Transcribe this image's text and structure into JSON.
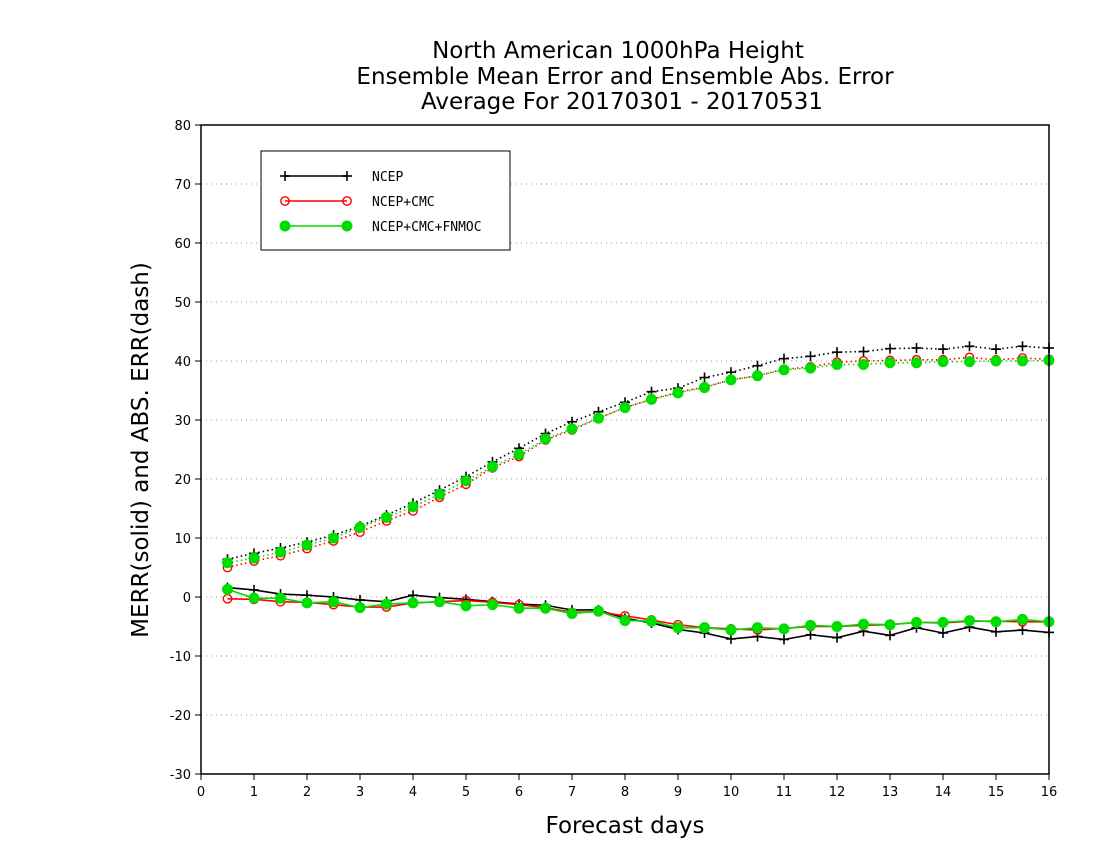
{
  "chart_data": {
    "type": "line",
    "title": [
      "North American 1000hPa Height",
      "Ensemble Mean Error and Ensemble Abs. Error",
      "Average For 20170301 - 20170531"
    ],
    "xlabel": "Forecast days",
    "ylabel": "MERR(solid) and ABS. ERR(dash)",
    "xlim": [
      0,
      16
    ],
    "ylim": [
      -30,
      80
    ],
    "xticks": [
      "0",
      "1",
      "2",
      "3",
      "4",
      "5",
      "6",
      "7",
      "8",
      "9",
      "10",
      "11",
      "12",
      "13",
      "14",
      "15",
      "16"
    ],
    "yticks": [
      "-30",
      "-20",
      "-10",
      "0",
      "10",
      "20",
      "30",
      "40",
      "50",
      "60",
      "70",
      "80"
    ],
    "grid": "horizontal dotted",
    "legend_position": "top-left",
    "x": [
      0.5,
      1,
      1.5,
      2,
      2.5,
      3,
      3.5,
      4,
      4.5,
      5,
      5.5,
      6,
      6.5,
      7,
      7.5,
      8,
      8.5,
      9,
      9.5,
      10,
      10.5,
      11,
      11.5,
      12,
      12.5,
      13,
      13.5,
      14,
      14.5,
      15,
      15.5,
      16
    ],
    "series": [
      {
        "name": "NCEP",
        "color": "#000000",
        "marker": "plus",
        "merr": [
          1.6,
          1.2,
          0.5,
          0.3,
          0.0,
          -0.5,
          -0.8,
          0.3,
          -0.1,
          -0.4,
          -0.8,
          -1.2,
          -1.4,
          -2.2,
          -2.2,
          -3.6,
          -4.4,
          -5.5,
          -6.1,
          -7.1,
          -6.7,
          -7.2,
          -6.4,
          -6.9,
          -5.8,
          -6.5,
          -5.2,
          -6.1,
          -5.1,
          -5.9,
          -5.6,
          -6.0
        ],
        "abs_err": [
          6.4,
          7.4,
          8.3,
          9.3,
          10.5,
          12.0,
          13.9,
          15.9,
          18.1,
          20.4,
          22.9,
          25.2,
          27.7,
          29.7,
          31.4,
          33.0,
          34.8,
          35.4,
          37.2,
          38.1,
          39.2,
          40.4,
          40.8,
          41.5,
          41.6,
          42.1,
          42.2,
          42.0,
          42.5,
          42.0,
          42.5,
          42.2
        ]
      },
      {
        "name": "NCEP+CMC",
        "color": "#ff0000",
        "marker": "open-circle",
        "merr": [
          -0.3,
          -0.4,
          -0.8,
          -0.9,
          -1.3,
          -1.7,
          -1.7,
          -1.0,
          -0.8,
          -0.6,
          -0.9,
          -1.3,
          -1.8,
          -2.6,
          -2.5,
          -3.2,
          -3.9,
          -4.7,
          -5.2,
          -5.4,
          -5.6,
          -5.3,
          -5.0,
          -5.0,
          -4.8,
          -4.7,
          -4.3,
          -4.4,
          -4.1,
          -4.1,
          -4.2,
          -4.2
        ],
        "abs_err": [
          5.0,
          6.1,
          7.0,
          8.2,
          9.5,
          11.0,
          12.9,
          14.6,
          16.9,
          19.1,
          21.9,
          23.8,
          26.6,
          28.3,
          30.3,
          32.1,
          33.5,
          34.7,
          35.6,
          36.8,
          37.5,
          38.6,
          39.0,
          39.8,
          40.0,
          40.1,
          40.2,
          40.2,
          40.6,
          40.2,
          40.5,
          40.3
        ]
      },
      {
        "name": "NCEP+CMC+FNMOC",
        "color": "#00dd00",
        "marker": "filled-circle",
        "merr": [
          1.3,
          -0.2,
          -0.2,
          -1.0,
          -0.8,
          -1.8,
          -1.2,
          -1.0,
          -0.8,
          -1.5,
          -1.3,
          -1.9,
          -1.9,
          -2.8,
          -2.4,
          -4.0,
          -4.1,
          -5.2,
          -5.2,
          -5.6,
          -5.2,
          -5.4,
          -4.8,
          -5.0,
          -4.6,
          -4.7,
          -4.3,
          -4.3,
          -4.0,
          -4.2,
          -3.8,
          -4.2
        ],
        "abs_err": [
          5.8,
          6.6,
          7.6,
          8.8,
          10.0,
          11.8,
          13.5,
          15.3,
          17.4,
          19.7,
          22.1,
          24.2,
          26.8,
          28.5,
          30.3,
          32.1,
          33.5,
          34.6,
          35.5,
          36.8,
          37.5,
          38.5,
          38.8,
          39.4,
          39.4,
          39.7,
          39.7,
          39.9,
          39.9,
          40.0,
          40.0,
          40.1
        ]
      }
    ]
  }
}
